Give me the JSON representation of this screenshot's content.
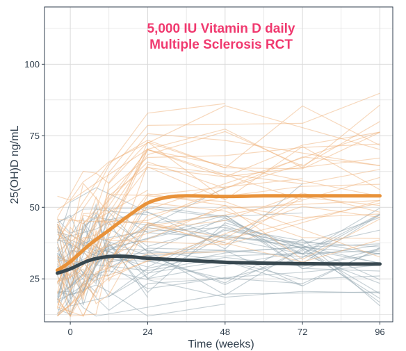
{
  "chart_data": {
    "type": "line",
    "title": "5,000 IU Vitamin D daily",
    "subtitle": "Multiple Sclerosis RCT",
    "xlabel": "Time (weeks)",
    "ylabel": "25(OH)D ng/mL",
    "xlim": [
      -8,
      100
    ],
    "ylim": [
      10,
      120
    ],
    "x_ticks": [
      0,
      24,
      48,
      72,
      96
    ],
    "y_ticks": [
      25,
      50,
      75,
      100
    ],
    "grid": true,
    "legend": "none",
    "series": [
      {
        "color": "#e8923a",
        "x": [
          -4,
          0,
          6,
          12,
          18,
          24,
          30,
          36,
          48,
          60,
          72,
          84,
          96
        ],
        "values": [
          28,
          31,
          37,
          42,
          47,
          51.5,
          53.5,
          54,
          53.8,
          54,
          54,
          54,
          54
        ]
      },
      {
        "color": "#37474f",
        "x": [
          -4,
          0,
          6,
          12,
          18,
          24,
          36,
          48,
          60,
          72,
          84,
          96
        ],
        "values": [
          27,
          28.5,
          31.5,
          32.8,
          32.8,
          32.2,
          31.5,
          30.8,
          30.5,
          30.3,
          30.2,
          30.2
        ]
      }
    ],
    "individual_trajectories": {
      "count_per_group": 38,
      "colors": {
        "treatment": "#f0b27a",
        "control": "#90a4ae"
      }
    }
  },
  "colors": {
    "title": "#f0396f",
    "grid": "#d9d9d9",
    "axis": "#2f3e4c"
  }
}
